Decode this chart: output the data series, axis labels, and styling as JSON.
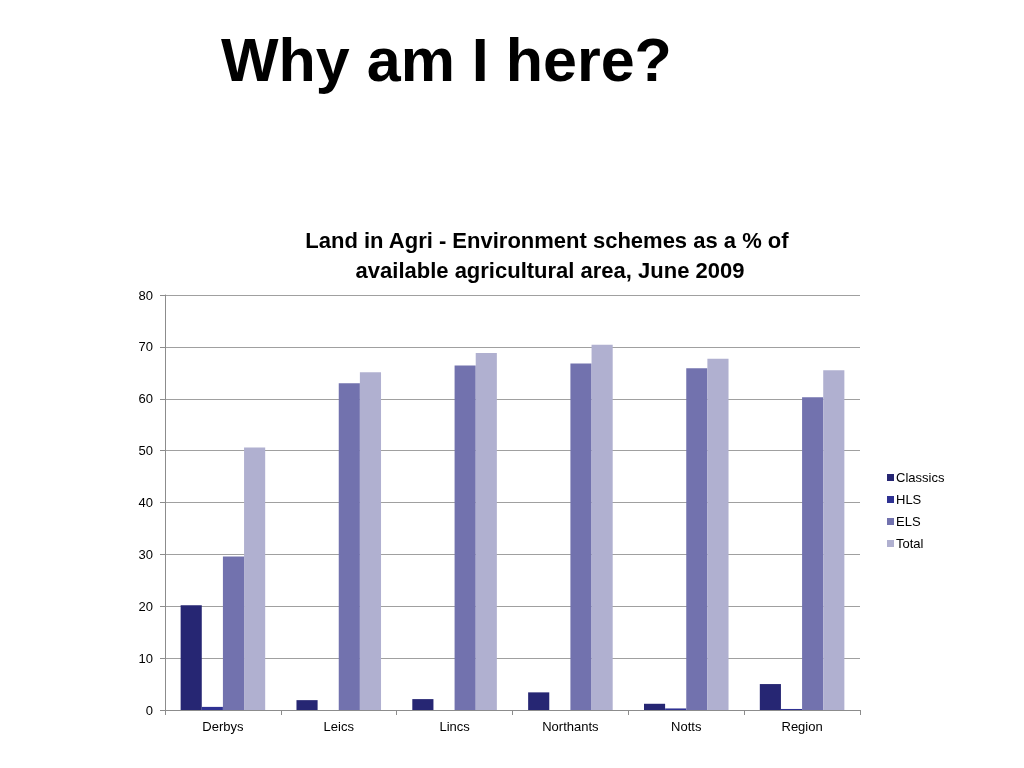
{
  "chart_data": {
    "type": "bar",
    "title": "Why am I here?",
    "subtitle": "Land in Agri - Environment schemes as a % of available agricultural area, June 2009",
    "categories": [
      "Derbys",
      "Leics",
      "Lincs",
      "Northants",
      "Notts",
      "Region"
    ],
    "series": [
      {
        "name": "Classics",
        "color": "#262673",
        "values": [
          20.2,
          1.9,
          2.1,
          3.4,
          1.2,
          5.0
        ]
      },
      {
        "name": "HLS",
        "color": "#2e3192",
        "values": [
          0.6,
          0,
          0,
          0,
          0.3,
          0.2
        ]
      },
      {
        "name": "ELS",
        "color": "#7272ae",
        "values": [
          29.6,
          63.0,
          66.4,
          66.8,
          65.9,
          60.3
        ]
      },
      {
        "name": "Total",
        "color": "#b0b0d0",
        "values": [
          50.6,
          65.1,
          68.8,
          70.4,
          67.7,
          65.5
        ]
      }
    ],
    "ylim": [
      0,
      80
    ],
    "yticks": [
      0,
      10,
      20,
      30,
      40,
      50,
      60,
      70,
      80
    ],
    "grid": "y",
    "legend": "right"
  }
}
